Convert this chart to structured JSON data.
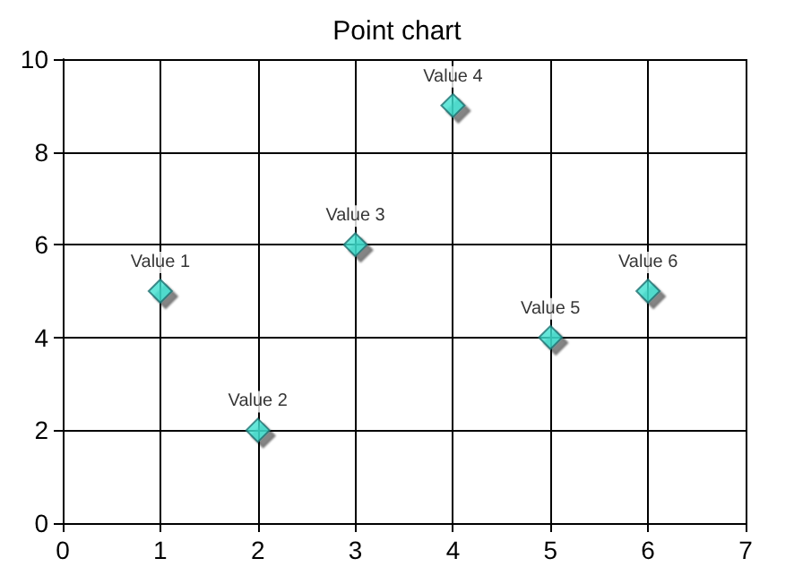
{
  "chart_data": {
    "type": "scatter",
    "title": "Point chart",
    "x": [
      1,
      2,
      3,
      4,
      5,
      6
    ],
    "series": [
      {
        "color": "#40e0d0",
        "values": [
          5,
          2,
          6,
          9,
          4,
          5
        ]
      }
    ],
    "annotations": [
      {
        "text": "Value 1",
        "x": 1,
        "y": 5
      },
      {
        "text": "Value 2",
        "x": 2,
        "y": 2
      },
      {
        "text": "Value 3",
        "x": 3,
        "y": 6
      },
      {
        "text": "Value 4",
        "x": 4,
        "y": 9
      },
      {
        "text": "Value 5",
        "x": 5,
        "y": 4
      },
      {
        "text": "Value 6",
        "x": 6,
        "y": 5
      }
    ],
    "xlim": [
      0,
      7
    ],
    "xticks": [
      0,
      1,
      2,
      3,
      4,
      5,
      6,
      7
    ],
    "ylim": [
      0,
      10
    ],
    "yticks": [
      0,
      2,
      4,
      6,
      8,
      10
    ],
    "grid": true,
    "marker": "diamond"
  }
}
